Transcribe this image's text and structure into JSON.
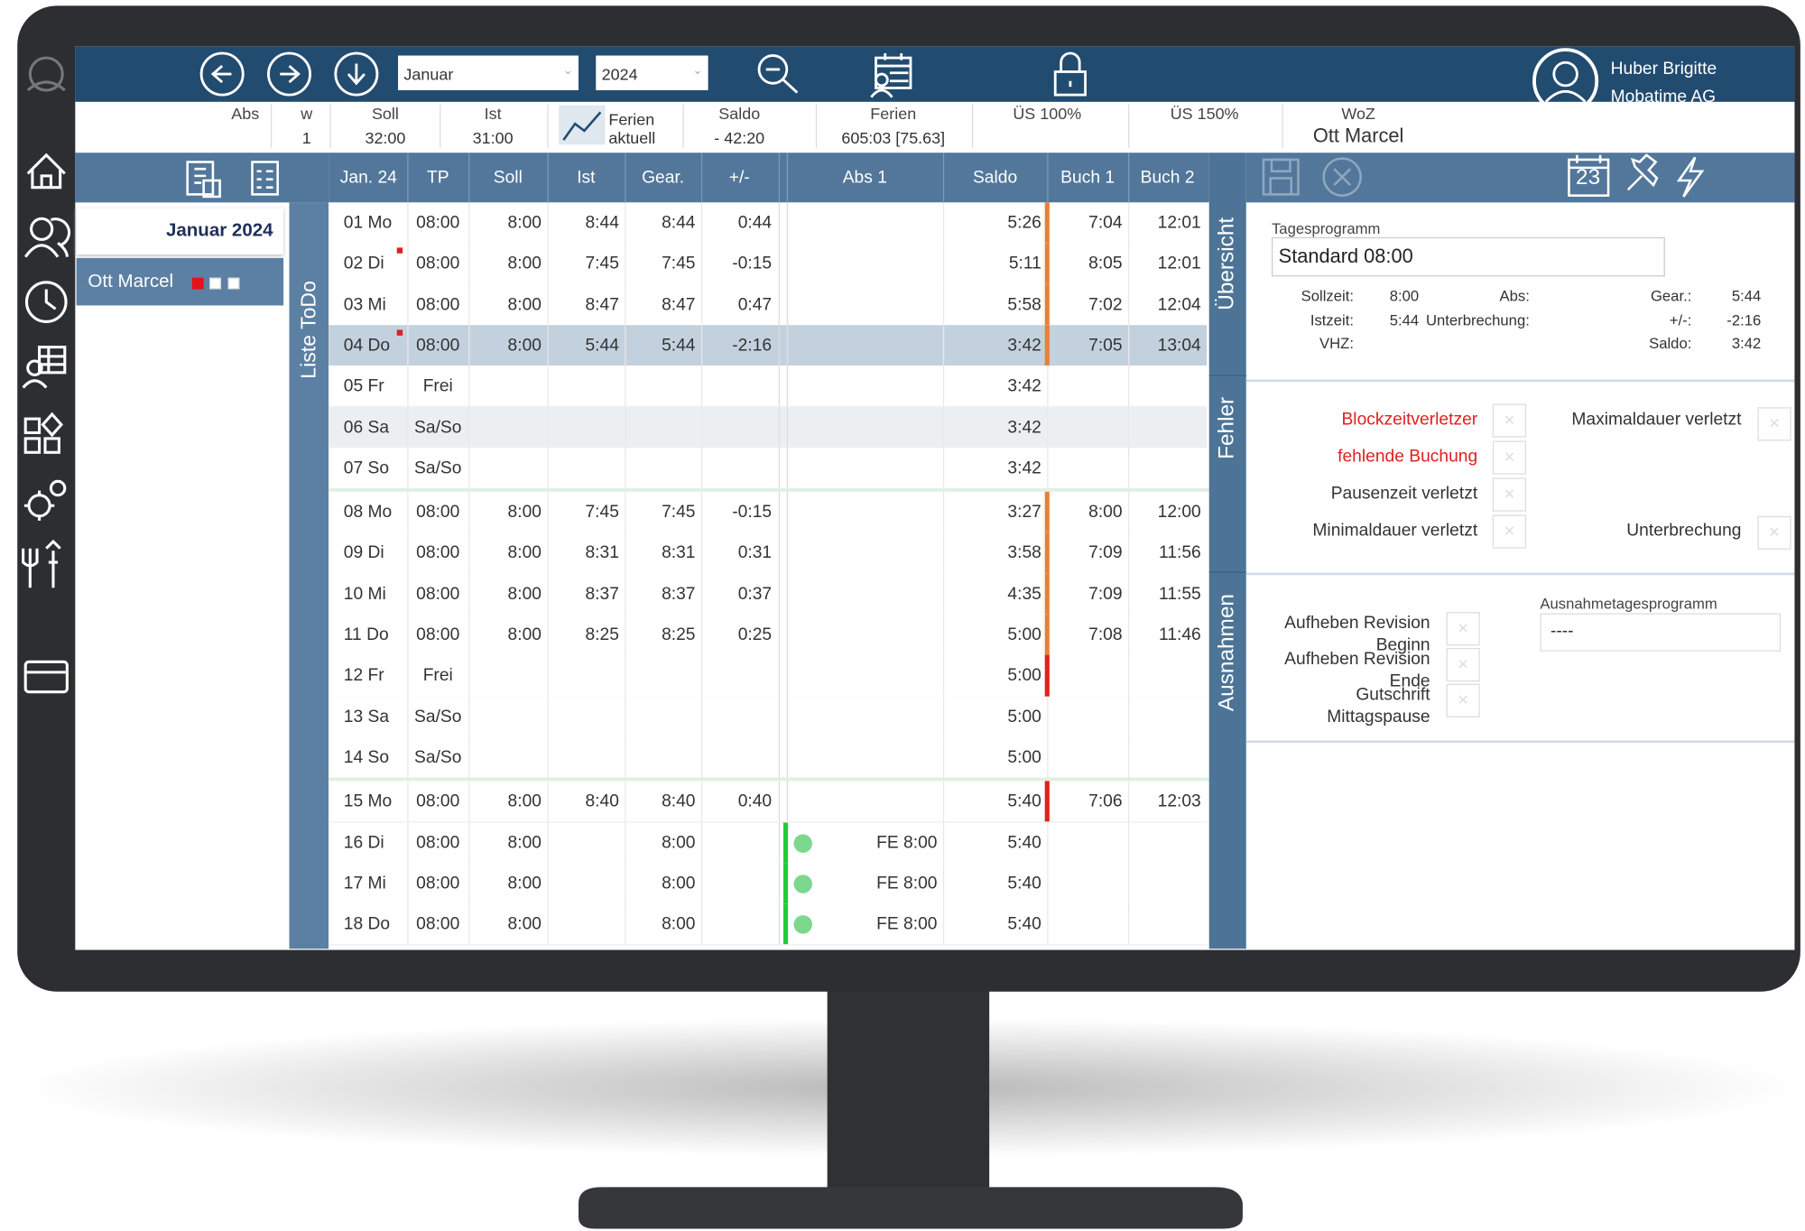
{
  "toolbar": {
    "month": "Januar",
    "year": "2024",
    "user_name": "Huber Brigitte",
    "company": "Mobatime AG"
  },
  "summary": [
    {
      "label": "Abs"
    },
    {
      "label": "w",
      "value": "1"
    },
    {
      "label": "Soll",
      "value": "32:00"
    },
    {
      "label": "Ist",
      "value": "31:00"
    },
    {
      "label": "Ferien aktuell"
    },
    {
      "label": "Saldo",
      "value": "- 42:20"
    },
    {
      "label": "Ferien",
      "value": "605:03 [75.63]"
    },
    {
      "label": "ÜS 100%"
    },
    {
      "label": "ÜS 150%"
    },
    {
      "label": "WoZ",
      "value": "Ott Marcel"
    }
  ],
  "left_panel": {
    "period": "Januar 2024",
    "employee": "Ott Marcel",
    "todo_tab": "Liste ToDo"
  },
  "table": {
    "headers": [
      "Jan. 24",
      "TP",
      "Soll",
      "Ist",
      "Gear.",
      "+/-",
      "Abs 1",
      "Saldo",
      "Buch 1",
      "Buch 2"
    ],
    "rows": [
      {
        "cells": [
          "01 Mo",
          "08:00",
          "8:00",
          "8:44",
          "8:44",
          "0:44",
          null,
          "5:26",
          "7:04",
          "12:01"
        ],
        "saldo_flag": "#e8803a"
      },
      {
        "cells": [
          "02 Di",
          "08:00",
          "8:00",
          "7:45",
          "7:45",
          "-0:15",
          null,
          "5:11",
          "8:05",
          "12:01"
        ],
        "saldo_flag": "#e8803a",
        "note": "#e0201f"
      },
      {
        "cells": [
          "03 Mi",
          "08:00",
          "8:00",
          "8:47",
          "8:47",
          "0:47",
          null,
          "5:58",
          "7:02",
          "12:04"
        ],
        "saldo_flag": "#e8803a"
      },
      {
        "cells": [
          "04 Do",
          "08:00",
          "8:00",
          "5:44",
          "5:44",
          "-2:16",
          null,
          "3:42",
          "7:05",
          "13:04"
        ],
        "saldo_flag": "#e8803a",
        "note": "#e0201f",
        "background": "#c3d1de"
      },
      {
        "cells": [
          "05 Fr",
          "Frei",
          null,
          null,
          null,
          null,
          null,
          "3:42",
          null,
          null
        ]
      },
      {
        "cells": [
          "06 Sa",
          "Sa/So",
          null,
          null,
          null,
          null,
          null,
          "3:42",
          null,
          null
        ],
        "background": "#eceff2"
      },
      {
        "cells": [
          "07 So",
          "Sa/So",
          null,
          null,
          null,
          null,
          null,
          "3:42",
          null,
          null
        ]
      },
      {
        "cells": [
          "08 Mo",
          "08:00",
          "8:00",
          "7:45",
          "7:45",
          "-0:15",
          null,
          "3:27",
          "8:00",
          "12:00"
        ],
        "saldo_flag": "#e8803a"
      },
      {
        "cells": [
          "09 Di",
          "08:00",
          "8:00",
          "8:31",
          "8:31",
          "0:31",
          null,
          "3:58",
          "7:09",
          "11:56"
        ],
        "saldo_flag": "#e8803a"
      },
      {
        "cells": [
          "10 Mi",
          "08:00",
          "8:00",
          "8:37",
          "8:37",
          "0:37",
          null,
          "4:35",
          "7:09",
          "11:55"
        ],
        "saldo_flag": "#e8803a"
      },
      {
        "cells": [
          "11 Do",
          "08:00",
          "8:00",
          "8:25",
          "8:25",
          "0:25",
          null,
          "5:00",
          "7:08",
          "11:46"
        ],
        "saldo_flag": "#e8803a"
      },
      {
        "cells": [
          "12 Fr",
          "Frei",
          null,
          null,
          null,
          null,
          null,
          "5:00",
          null,
          null
        ],
        "saldo_flag": "#e0201f"
      },
      {
        "cells": [
          "13 Sa",
          "Sa/So",
          null,
          null,
          null,
          null,
          null,
          "5:00",
          null,
          null
        ]
      },
      {
        "cells": [
          "14 So",
          "Sa/So",
          null,
          null,
          null,
          null,
          null,
          "5:00",
          null,
          null
        ]
      },
      {
        "cells": [
          "15 Mo",
          "08:00",
          "8:00",
          "8:40",
          "8:40",
          "0:40",
          null,
          "5:40",
          "7:06",
          "12:03"
        ],
        "saldo_flag": "#e0201f"
      },
      {
        "cells": [
          "16 Di",
          "08:00",
          "8:00",
          null,
          "8:00",
          null,
          "FE 8:00",
          "5:40",
          null,
          null
        ],
        "abs_flag": "#22cc33"
      },
      {
        "cells": [
          "17 Mi",
          "08:00",
          "8:00",
          null,
          "8:00",
          null,
          "FE 8:00",
          "5:40",
          null,
          null
        ],
        "abs_flag": "#22cc33"
      },
      {
        "cells": [
          "18 Do",
          "08:00",
          "8:00",
          null,
          "8:00",
          null,
          "FE 8:00",
          "5:40",
          null,
          null
        ],
        "abs_flag": "#22cc33"
      }
    ]
  },
  "right_panel": {
    "calendar_day": "23",
    "tabs": [
      "Übersicht",
      "Fehler",
      "Ausnahmen"
    ],
    "program_label": "Tagesprogramm",
    "program": "Standard 08:00",
    "details": [
      [
        "Sollzeit:",
        "8:00",
        "Abs:",
        null,
        "Gear.:",
        "5:44"
      ],
      [
        "Istzeit:",
        "5:44",
        "Unterbrechung:",
        null,
        "+/-:",
        "-2:16"
      ],
      [
        "VHZ:",
        null,
        null,
        null,
        "Saldo:",
        "3:42"
      ]
    ],
    "errors_left": [
      {
        "label": "Blockzeitverletzer",
        "color": "#e0201f"
      },
      {
        "label": "fehlende Buchung",
        "color": "#e0201f"
      },
      {
        "label": "Pausenzeit verletzt",
        "color": "#333333"
      },
      {
        "label": "Minimaldauer verletzt",
        "color": "#333333"
      }
    ],
    "errors_right": [
      {
        "label": "Maximaldauer verletzt"
      },
      {
        "label": "Unterbrechung"
      }
    ],
    "exceptions": [
      [
        "Aufheben Revision",
        "Beginn"
      ],
      [
        "Aufheben Revision",
        "Ende"
      ],
      [
        "Gutschrift",
        "Mittagspause"
      ]
    ],
    "exception_program_label": "Ausnahmetagesprogramm",
    "exception_program": "----"
  }
}
